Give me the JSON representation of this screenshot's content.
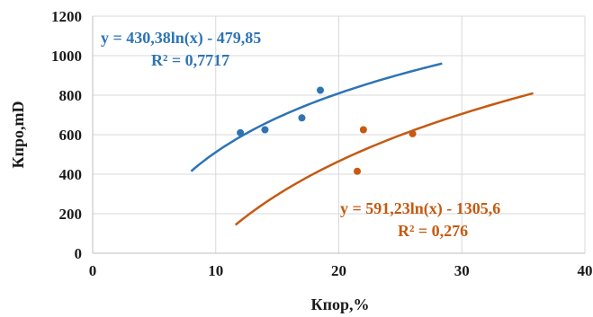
{
  "chart_data": {
    "type": "scatter",
    "xlabel": "Кпор,%",
    "ylabel": "Кпро,mD",
    "xlim": [
      0,
      40
    ],
    "ylim": [
      0,
      1200
    ],
    "x_ticks": [
      "0",
      "10",
      "20",
      "30",
      "40"
    ],
    "y_ticks": [
      "0",
      "200",
      "400",
      "600",
      "800",
      "1000",
      "1200"
    ],
    "grid": true,
    "series": [
      {
        "color": "#2e74b5",
        "points": [
          {
            "x": 12,
            "y": 610
          },
          {
            "x": 14,
            "y": 625
          },
          {
            "x": 17,
            "y": 685
          },
          {
            "x": 18.5,
            "y": 825
          }
        ],
        "trendline": {
          "kind": "log",
          "a": 430.38,
          "b": -479.85,
          "x_range": [
            8,
            28.4
          ],
          "equation": "y = 430,38ln(x) - 479,85",
          "r2": "R² = 0,7717"
        }
      },
      {
        "color": "#c55a11",
        "points": [
          {
            "x": 21.5,
            "y": 415
          },
          {
            "x": 22,
            "y": 625
          },
          {
            "x": 26,
            "y": 605
          }
        ],
        "trendline": {
          "kind": "log",
          "a": 591.23,
          "b": -1305.6,
          "x_range": [
            11.6,
            35.8
          ],
          "equation": "y = 591,23ln(x) - 1305,6",
          "r2": "R² = 0,276"
        }
      }
    ]
  }
}
